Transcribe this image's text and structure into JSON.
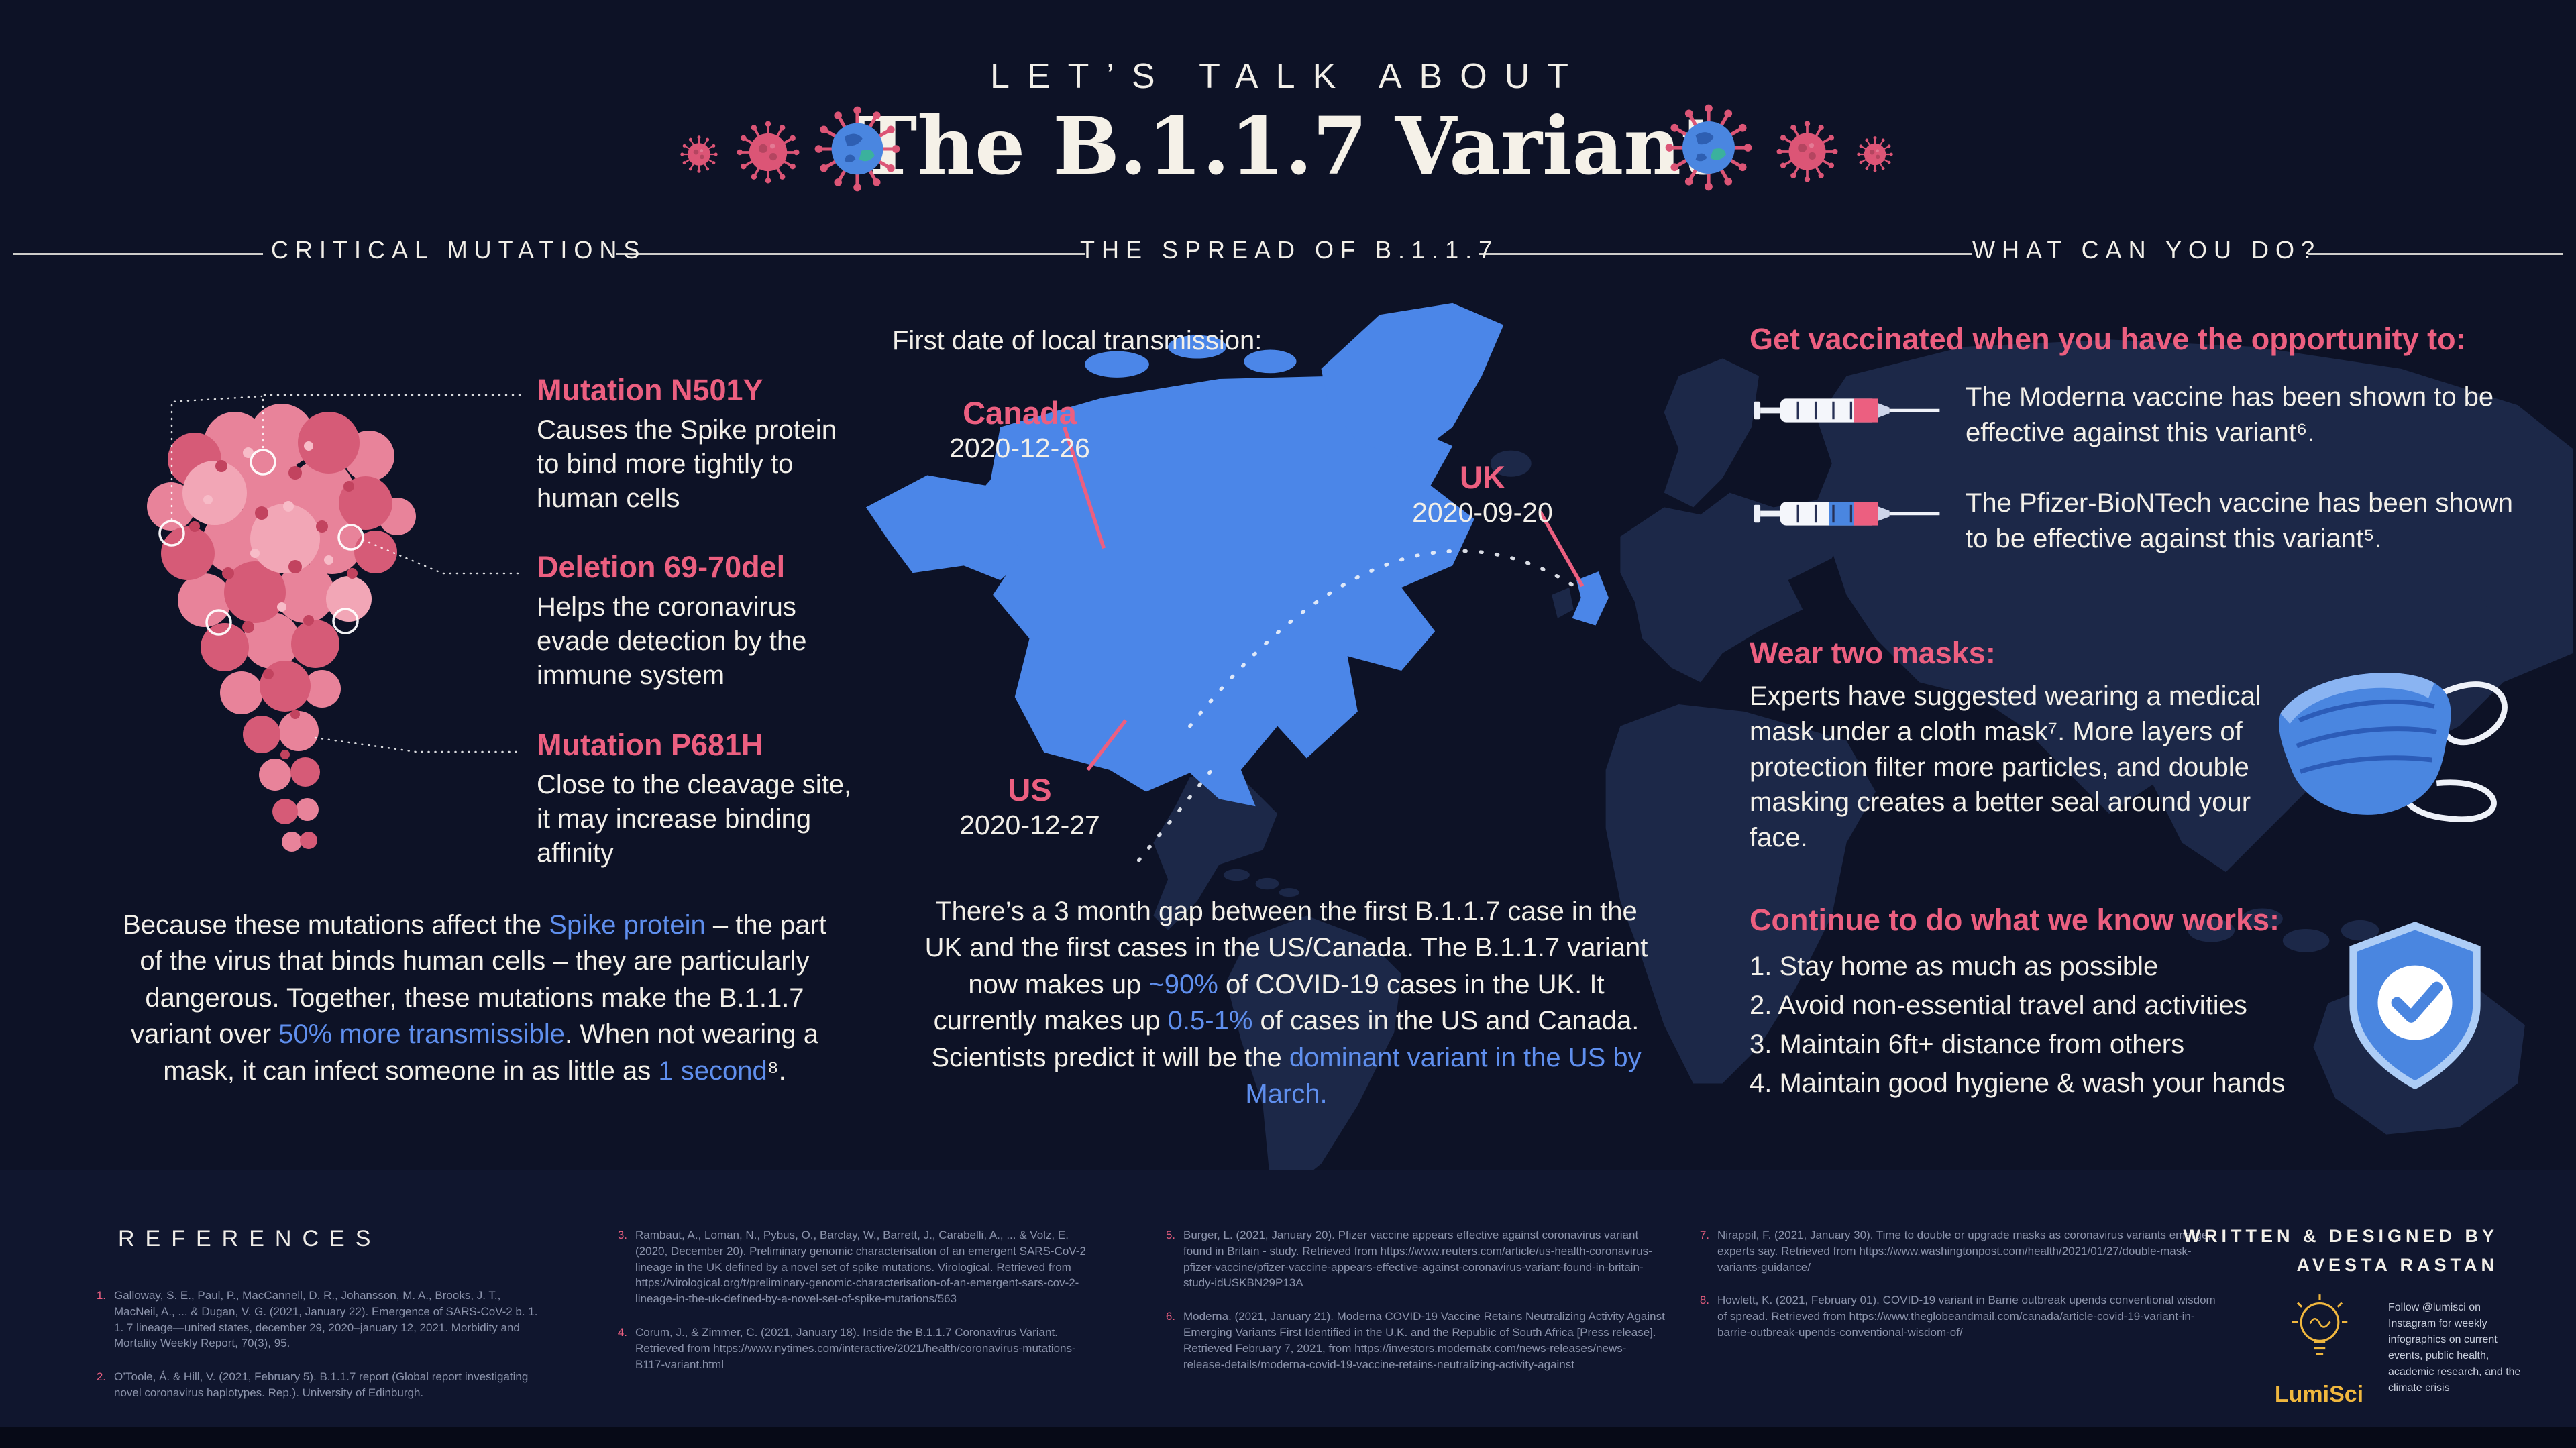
{
  "colors": {
    "background": "#0d1226",
    "footer_background": "#10162e",
    "accent_pink": "#ec5f80",
    "accent_blue": "#5f8fee",
    "map_highlight": "#4b86e8",
    "map_land": "#1c2848",
    "accent_yellow": "#f0b73e"
  },
  "icons": {
    "left_decoration": [
      "virus-icon",
      "virus-icon",
      "earth-virus-icon"
    ],
    "right_decoration": [
      "earth-virus-icon",
      "virus-icon",
      "virus-icon"
    ],
    "vaccine": "syringe-icon",
    "masks": "double-mask-icon",
    "works": "shield-check-icon",
    "logo": "lightbulb-icon"
  },
  "header": {
    "kicker": "LET’S TALK ABOUT",
    "title": "The B.1.1.7 Variant"
  },
  "sections": {
    "left": "CRITICAL MUTATIONS",
    "center": "THE SPREAD OF B.1.1.7",
    "right": "WHAT CAN YOU DO?"
  },
  "mutations": {
    "items": [
      {
        "name": "Mutation N501Y",
        "desc": "Causes the Spike protein to bind more tightly  to human cells"
      },
      {
        "name": "Deletion 69-70del",
        "desc": "Helps the coronavirus evade detection by the immune system"
      },
      {
        "name": "Mutation P681H",
        "desc": "Close to the cleavage site, it may increase binding affinity"
      }
    ],
    "summary_parts": [
      {
        "t": "Because these mutations affect the "
      },
      {
        "t": "Spike protein",
        "c": "blue"
      },
      {
        "t": " – the part of the virus that binds human cells – they are particularly dangerous. Together, these mutations make the  B.1.1.7 variant over "
      },
      {
        "t": "50% more transmissible",
        "c": "blue"
      },
      {
        "t": ". When not wearing a mask, it can infect someone in as little as "
      },
      {
        "t": "1 second",
        "c": "blue"
      },
      {
        "t": "⁸."
      }
    ]
  },
  "spread": {
    "lead": "First date of local transmission:",
    "labels": [
      {
        "country": "Canada",
        "date": "2020-12-26"
      },
      {
        "country": "UK",
        "date": "2020-09-20"
      },
      {
        "country": "US",
        "date": "2020-12-27"
      }
    ],
    "summary_parts": [
      {
        "t": "There’s a 3 month gap between the first  B.1.1.7 case in the UK and the first cases in the US/Canada. The B.1.1.7 variant now makes up "
      },
      {
        "t": "~90%",
        "c": "blue"
      },
      {
        "t": " of COVID-19 cases in the UK.  It currently makes up "
      },
      {
        "t": "0.5-1%",
        "c": "blue"
      },
      {
        "t": " of cases in the US and Canada. Scientists predict it will be the "
      },
      {
        "t": "dominant variant in the US by  March.",
        "c": "blue"
      }
    ]
  },
  "actions": {
    "vaccine_heading": "Get vaccinated when you have the opportunity to:",
    "vaccines": [
      {
        "text": "The  Moderna vaccine has been shown to be effective against this variant⁶."
      },
      {
        "text": "The  Pfizer-BioNTech vaccine has been shown to be effective against this variant⁵."
      }
    ],
    "masks_heading": "Wear two masks:",
    "masks_text": "Experts have suggested wearing a medical mask under a cloth mask⁷.  More layers of protection filter more particles, and double masking creates a better seal around your face.",
    "continue_heading": "Continue to do what we know works:",
    "continue_items": [
      "1. Stay home as much as possible",
      "2. Avoid non-essential travel and activities",
      "3.  Maintain 6ft+ distance from others",
      "4.  Maintain good hygiene & wash your hands"
    ]
  },
  "references": {
    "heading": "REFERENCES",
    "items": [
      {
        "num": "1.",
        "text": "Galloway, S. E., Paul, P., MacCannell, D. R., Johansson, M. A., Brooks, J. T., MacNeil, A., ... & Dugan, V. G. (2021, January 22). Emergence of SARS-CoV-2 b. 1. 1. 7 lineage—united states, december 29, 2020–january 12, 2021. Morbidity and Mortality Weekly Report, 70(3), 95."
      },
      {
        "num": "2.",
        "text": "O’Toole, Á. & Hill, V. (2021, February 5). B.1.1.7 report (Global report investigating novel coronavirus haplotypes. Rep.). University of Edinburgh."
      },
      {
        "num": "3.",
        "text": "Rambaut, A., Loman, N., Pybus, O., Barclay, W., Barrett, J., Carabelli, A., ... & Volz, E. (2020, December 20). Preliminary genomic characterisation of an emergent SARS-CoV-2 lineage in the UK defined by a novel set of spike mutations. Virological. Retrieved from https://virological.org/t/preliminary-genomic-characterisation-of-an-emergent-sars-cov-2-lineage-in-the-uk-defined-by-a-novel-set-of-spike-mutations/563"
      },
      {
        "num": "4.",
        "text": "Corum, J., & Zimmer, C. (2021, January 18). Inside the B.1.1.7 Coronavirus Variant. Retrieved from https://www.nytimes.com/interactive/2021/health/coronavirus-mutations-B117-variant.html"
      },
      {
        "num": "5.",
        "text": "Burger, L. (2021, January 20). Pfizer vaccine appears effective against coronavirus variant found in Britain - study. Retrieved from https://www.reuters.com/article/us-health-coronavirus-pfizer-vaccine/pfizer-vaccine-appears-effective-against-coronavirus-variant-found-in-britain-study-idUSKBN29P13A"
      },
      {
        "num": "6.",
        "text": "Moderna. (2021, January 21). Moderna COVID-19 Vaccine Retains Neutralizing Activity Against Emerging Variants First Identified in the U.K. and the Republic of South Africa [Press release]. Retrieved February 7, 2021, from https://investors.modernatx.com/news-releases/news-release-details/moderna-covid-19-vaccine-retains-neutralizing-activity-against"
      },
      {
        "num": "7.",
        "text": "Nirappil, F. (2021, January 30). Time to double or upgrade masks as coronavirus variants emerge, experts say. Retrieved from https://www.washingtonpost.com/health/2021/01/27/double-mask-variants-guidance/"
      },
      {
        "num": "8.",
        "text": "Howlett, K. (2021, February 01). COVID-19 variant in Barrie outbreak upends conventional wisdom of spread. Retrieved from https://www.theglobeandmail.com/canada/article-covid-19-variant-in-barrie-outbreak-upends-conventional-wisdom-of/"
      }
    ]
  },
  "credits": {
    "line1": "WRITTEN & DESIGNED BY",
    "line2": "AVESTA RASTAN",
    "logo": "LumiSci",
    "follow": "Follow @lumisci on Instagram for weekly infographics on current events, public health, academic research, and the climate crisis"
  }
}
